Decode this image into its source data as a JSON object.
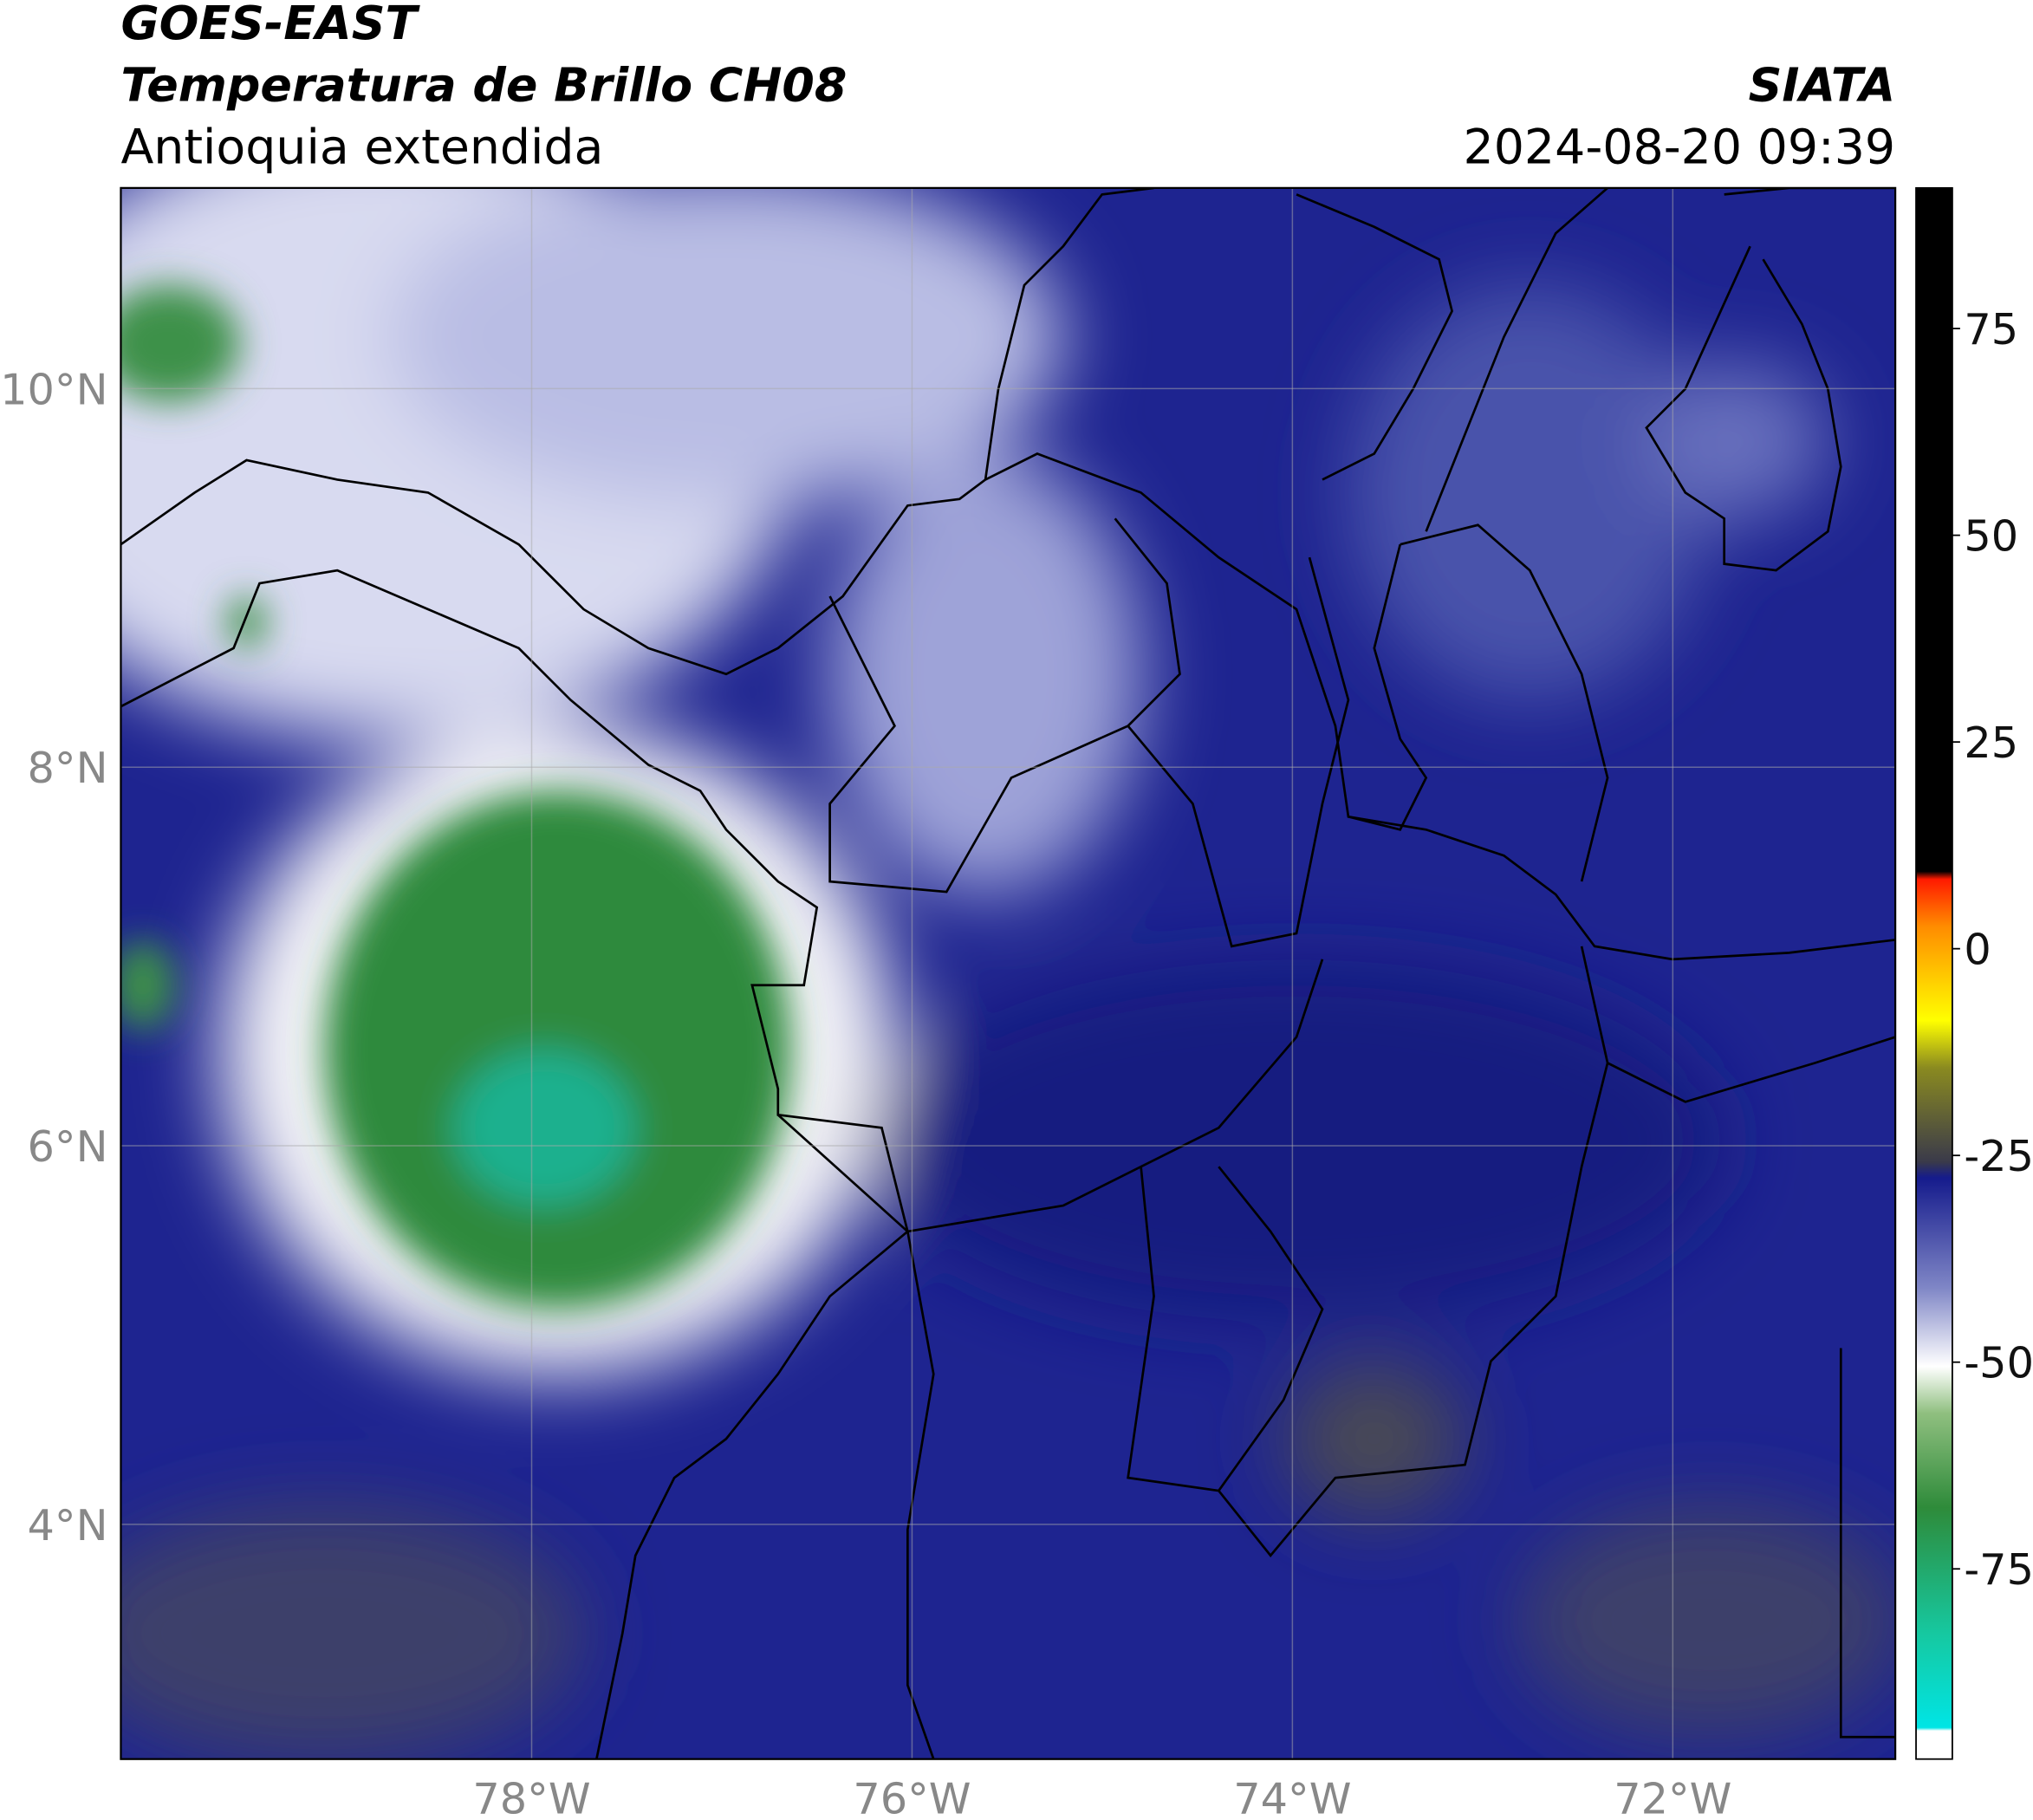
{
  "header": {
    "line1": "GOES-EAST",
    "line2": "Temperatura de Brillo CH08",
    "region": "Antioquia extendida",
    "source": "SIATA",
    "datetime": "2024-08-20 09:39"
  },
  "map": {
    "lonlim": [
      -80.16,
      -70.83
    ],
    "latlim": [
      2.76,
      11.06
    ],
    "lon_ticks": [
      {
        "value": -78,
        "label": "78°W"
      },
      {
        "value": -76,
        "label": "76°W"
      },
      {
        "value": -74,
        "label": "74°W"
      },
      {
        "value": -72,
        "label": "72°W"
      }
    ],
    "lat_ticks": [
      {
        "value": 10,
        "label": "10°N"
      },
      {
        "value": 8,
        "label": "8°N"
      },
      {
        "value": 6,
        "label": "6°N"
      },
      {
        "value": 4,
        "label": "4°N"
      }
    ],
    "grid": true
  },
  "colorbar": {
    "lim": [
      -98,
      92
    ],
    "ticks": [
      75,
      50,
      25,
      0,
      -25,
      -50,
      -75
    ]
  }
}
